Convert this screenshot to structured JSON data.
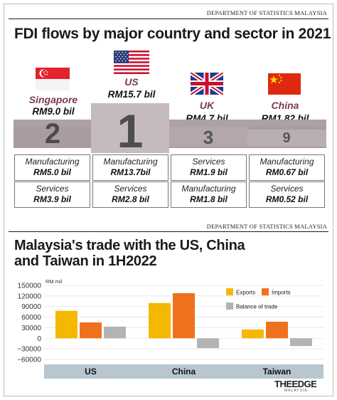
{
  "fdi": {
    "source": "DEPARTMENT OF STATISTICS MALAYSIA",
    "title": "FDI flows by major country and sector in 2021",
    "countries": [
      {
        "name": "Singapore",
        "total": "RM9.0 bil",
        "rank": "2",
        "sectors": [
          {
            "sector": "Manufacturing",
            "value": "RM5.0 bil"
          },
          {
            "sector": "Services",
            "value": "RM3.9 bil"
          }
        ]
      },
      {
        "name": "US",
        "total": "RM15.7 bil",
        "rank": "1",
        "sectors": [
          {
            "sector": "Manufacturing",
            "value": "RM13.7bil"
          },
          {
            "sector": "Services",
            "value": "RM2.8 bil"
          }
        ]
      },
      {
        "name": "UK",
        "total": "RM4.7 bil",
        "rank": "3",
        "sectors": [
          {
            "sector": "Services",
            "value": "RM1.9 bil"
          },
          {
            "sector": "Manufacturing",
            "value": "RM1.8 bil"
          }
        ]
      },
      {
        "name": "China",
        "total": "RM1.82 bil",
        "rank": "9",
        "sectors": [
          {
            "sector": "Manufacturing",
            "value": "RM0.67 bil"
          },
          {
            "sector": "Services",
            "value": "RM0.52 bil"
          }
        ]
      }
    ]
  },
  "trade": {
    "source": "DEPARTMENT OF STATISTICS MALAYSIA",
    "title_line1": "Malaysia's trade with the US, China",
    "title_line2": "and Taiwan in 1H2022",
    "logo_text": "THEEDGE",
    "logo_sub": "MALAYSIA"
  },
  "chart_data": {
    "type": "bar",
    "ylabel": "RM mil",
    "categories": [
      "US",
      "China",
      "Taiwan"
    ],
    "series": [
      {
        "name": "Exports",
        "color": "#f5b800",
        "values": [
          78000,
          100000,
          25000
        ]
      },
      {
        "name": "Imports",
        "color": "#f0711d",
        "values": [
          45000,
          128000,
          47000
        ]
      },
      {
        "name": "Balance of trade",
        "color": "#b3b3b3",
        "values": [
          33000,
          -28000,
          -22000
        ]
      }
    ],
    "ylim": [
      -60000,
      150000
    ],
    "yticks": [
      "150000",
      "120000",
      "90000",
      "60000",
      "30000",
      "0",
      "−30000",
      "−60000"
    ],
    "ytick_values": [
      150000,
      120000,
      90000,
      60000,
      30000,
      0,
      -30000,
      -60000
    ],
    "grid": true,
    "legend": "top-right"
  },
  "colors": {
    "accent": "#7b3a4d",
    "podium": "#ada1a3",
    "category_band": "#b8c6cf"
  }
}
